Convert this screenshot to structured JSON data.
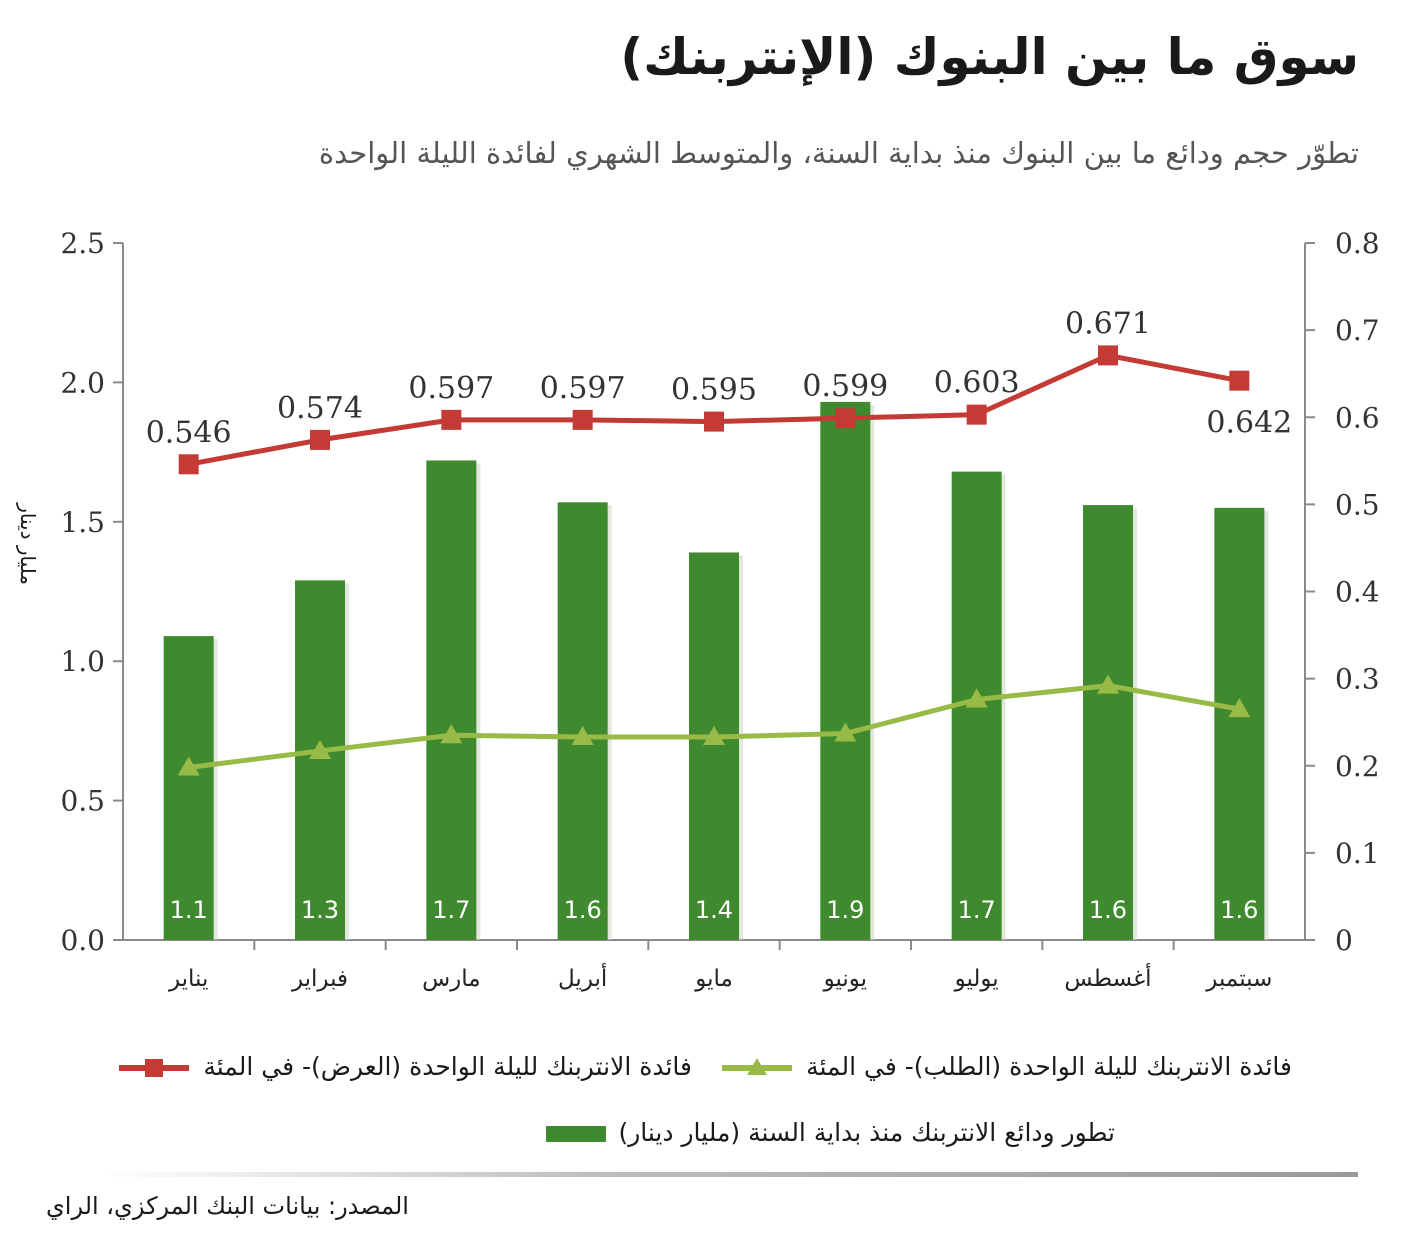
{
  "title": "سوق ما بين البنوك (الإنتربنك)",
  "subtitle": "تطوّر حجم ودائع ما بين البنوك منذ بداية السنة، والمتوسط الشهري لفائدة الليلة الواحدة",
  "source": "المصدر: بيانات البنك المركزي، الراي",
  "colors": {
    "bars": "#3f8a2e",
    "offer_line": "#c43a34",
    "bid_line": "#98bb48",
    "axis": "#8a8a8a"
  },
  "legend": {
    "offer": "فائدة الانتربنك لليلة الواحدة (العرض)- في المئة",
    "bid": "فائدة الانتربنك لليلة الواحدة (الطلب)- في المئة",
    "bars": "تطور ودائع الانتربنك منذ بداية السنة (مليار دينار)"
  },
  "chart_data": {
    "type": "bar",
    "categories": [
      "يناير",
      "فبراير",
      "مارس",
      "أبريل",
      "مايو",
      "يونيو",
      "يوليو",
      "أغسطس",
      "سبتمبر"
    ],
    "ylabel": "مليار دينار",
    "y_left": {
      "ylim": [
        0,
        2.5
      ],
      "ticks": [
        "0.0",
        "0.5",
        "1.0",
        "1.5",
        "2.0",
        "2.5"
      ]
    },
    "y_right": {
      "ylim": [
        0,
        0.8
      ],
      "ticks": [
        "0",
        "0.1",
        "0.2",
        "0.3",
        "0.4",
        "0.5",
        "0.6",
        "0.7",
        "0.8"
      ]
    },
    "series": [
      {
        "name": "تطور ودائع الانتربنك منذ بداية السنة (مليار دينار)",
        "kind": "bar",
        "axis": "left",
        "values": [
          1.09,
          1.29,
          1.72,
          1.57,
          1.39,
          1.93,
          1.68,
          1.56,
          1.55
        ],
        "labels": [
          "1.1",
          "1.3",
          "1.7",
          "1.6",
          "1.4",
          "1.9",
          "1.7",
          "1.6",
          "1.6"
        ]
      },
      {
        "name": "فائدة الانتربنك لليلة الواحدة (العرض)- في المئة",
        "kind": "line",
        "marker": "square",
        "axis": "right",
        "values": [
          0.546,
          0.574,
          0.597,
          0.597,
          0.595,
          0.599,
          0.603,
          0.671,
          0.642
        ],
        "labels": [
          "0.546",
          "0.574",
          "0.597",
          "0.597",
          "0.595",
          "0.599",
          "0.603",
          "0.671",
          "0.642"
        ]
      },
      {
        "name": "فائدة الانتربنك لليلة الواحدة (الطلب)- في المئة",
        "kind": "line",
        "marker": "triangle",
        "axis": "right",
        "values": [
          0.198,
          0.217,
          0.235,
          0.233,
          0.233,
          0.237,
          0.276,
          0.292,
          0.265
        ]
      }
    ],
    "grid": false,
    "legend_position": "bottom"
  }
}
